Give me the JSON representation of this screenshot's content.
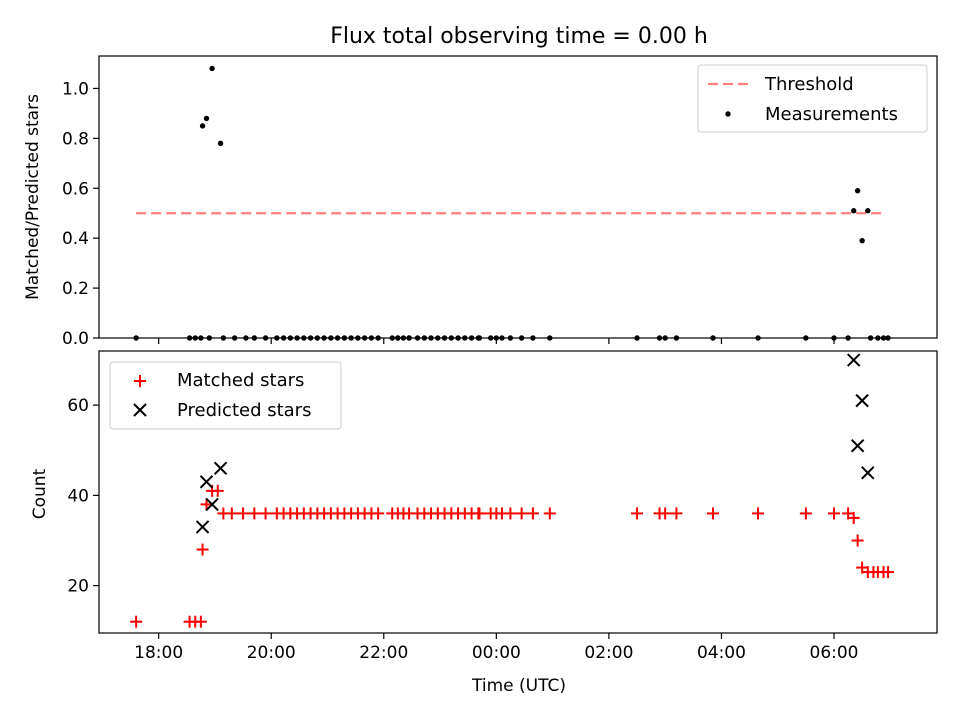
{
  "title": "Flux total observing time = 0.00 h",
  "chart_data": [
    {
      "type": "scatter",
      "panel": "top",
      "title": "Flux total observing time = 0.00 h",
      "xlabel": "",
      "ylabel": "Matched/Predicted stars",
      "x_unit": "hours since 00:00 UTC (negative = previous day)",
      "xlim": [
        -7.06,
        7.83
      ],
      "ylim": [
        0,
        1.13
      ],
      "yticks": [
        "0.0",
        "0.2",
        "0.4",
        "0.6",
        "0.8",
        "1.0"
      ],
      "ytick_values": [
        0,
        0.2,
        0.4,
        0.6,
        0.8,
        1.0
      ],
      "threshold": {
        "name": "Threshold",
        "y": 0.5,
        "x_range": [
          -6.4,
          6.85
        ],
        "color": "#ff7f7f"
      },
      "legend": {
        "placement": "top-right",
        "entries": [
          "Threshold",
          "Measurements"
        ]
      },
      "series": [
        {
          "name": "Measurements",
          "color": "#000000",
          "points": [
            [
              -6.4,
              0.0
            ],
            [
              -5.45,
              0.0
            ],
            [
              -5.35,
              0.0
            ],
            [
              -5.25,
              0.0
            ],
            [
              -5.22,
              0.85
            ],
            [
              -5.15,
              0.88
            ],
            [
              -5.05,
              1.08
            ],
            [
              -4.9,
              0.78
            ],
            [
              -5.1,
              0.0
            ],
            [
              -4.85,
              0.0
            ],
            [
              -4.65,
              0.0
            ],
            [
              -4.45,
              0.0
            ],
            [
              -4.3,
              0.0
            ],
            [
              -4.1,
              0.0
            ],
            [
              -3.9,
              0.0
            ],
            [
              -3.78,
              0.0
            ],
            [
              -3.66,
              0.0
            ],
            [
              -3.54,
              0.0
            ],
            [
              -3.42,
              0.0
            ],
            [
              -3.3,
              0.0
            ],
            [
              -3.18,
              0.0
            ],
            [
              -3.06,
              0.0
            ],
            [
              -2.94,
              0.0
            ],
            [
              -2.82,
              0.0
            ],
            [
              -2.7,
              0.0
            ],
            [
              -2.58,
              0.0
            ],
            [
              -2.46,
              0.0
            ],
            [
              -2.34,
              0.0
            ],
            [
              -2.22,
              0.0
            ],
            [
              -2.1,
              0.0
            ],
            [
              -1.85,
              0.0
            ],
            [
              -1.75,
              0.0
            ],
            [
              -1.65,
              0.0
            ],
            [
              -1.55,
              0.0
            ],
            [
              -1.75,
              0.0
            ],
            [
              -1.55,
              0.0
            ],
            [
              -1.4,
              0.0
            ],
            [
              -1.28,
              0.0
            ],
            [
              -1.16,
              0.0
            ],
            [
              -1.04,
              0.0
            ],
            [
              -0.92,
              0.0
            ],
            [
              -0.8,
              0.0
            ],
            [
              -0.68,
              0.0
            ],
            [
              -0.56,
              0.0
            ],
            [
              -0.44,
              0.0
            ],
            [
              -0.32,
              0.0
            ],
            [
              -0.3,
              0.0
            ],
            [
              -0.1,
              0.0
            ],
            [
              0.0,
              0.0
            ],
            [
              0.1,
              0.0
            ],
            [
              0.25,
              0.0
            ],
            [
              0.45,
              0.0
            ],
            [
              0.65,
              0.0
            ],
            [
              0.95,
              0.0
            ],
            [
              2.5,
              0.0
            ],
            [
              2.9,
              0.0
            ],
            [
              3.0,
              0.0
            ],
            [
              3.2,
              0.0
            ],
            [
              3.85,
              0.0
            ],
            [
              4.65,
              0.0
            ],
            [
              5.5,
              0.0
            ],
            [
              6.0,
              0.0
            ],
            [
              6.25,
              0.0
            ],
            [
              6.35,
              0.51
            ],
            [
              6.42,
              0.59
            ],
            [
              6.5,
              0.39
            ],
            [
              6.6,
              0.51
            ],
            [
              6.65,
              0.0
            ],
            [
              6.78,
              0.0
            ],
            [
              6.88,
              0.0
            ],
            [
              6.96,
              0.0
            ]
          ]
        }
      ]
    },
    {
      "type": "scatter",
      "panel": "bottom",
      "xlabel": "Time (UTC)",
      "ylabel": "Count",
      "xlim": [
        -7.06,
        7.83
      ],
      "ylim": [
        9.5,
        72
      ],
      "xticks": [
        "18:00",
        "20:00",
        "22:00",
        "00:00",
        "02:00",
        "04:00",
        "06:00"
      ],
      "xtick_values": [
        -6,
        -4,
        -2,
        0,
        2,
        4,
        6
      ],
      "yticks": [
        "20",
        "40",
        "60"
      ],
      "ytick_values": [
        20,
        40,
        60
      ],
      "legend": {
        "placement": "top-left",
        "entries": [
          "Matched stars",
          "Predicted stars"
        ]
      },
      "series": [
        {
          "name": "Matched stars",
          "marker": "plus",
          "color": "#ff0000",
          "points": [
            [
              -6.4,
              12
            ],
            [
              -5.45,
              12
            ],
            [
              -5.35,
              12
            ],
            [
              -5.25,
              12
            ],
            [
              -5.22,
              28
            ],
            [
              -5.15,
              38
            ],
            [
              -5.05,
              41
            ],
            [
              -4.95,
              41
            ],
            [
              -4.85,
              36
            ],
            [
              -4.7,
              36
            ],
            [
              -4.5,
              36
            ],
            [
              -4.3,
              36
            ],
            [
              -4.1,
              36
            ],
            [
              -3.9,
              36
            ],
            [
              -3.78,
              36
            ],
            [
              -3.66,
              36
            ],
            [
              -3.54,
              36
            ],
            [
              -3.42,
              36
            ],
            [
              -3.3,
              36
            ],
            [
              -3.18,
              36
            ],
            [
              -3.06,
              36
            ],
            [
              -2.94,
              36
            ],
            [
              -2.82,
              36
            ],
            [
              -2.7,
              36
            ],
            [
              -2.58,
              36
            ],
            [
              -2.46,
              36
            ],
            [
              -2.34,
              36
            ],
            [
              -2.22,
              36
            ],
            [
              -2.1,
              36
            ],
            [
              -1.85,
              36
            ],
            [
              -1.75,
              36
            ],
            [
              -1.65,
              36
            ],
            [
              -1.55,
              36
            ],
            [
              -1.4,
              36
            ],
            [
              -1.28,
              36
            ],
            [
              -1.16,
              36
            ],
            [
              -1.04,
              36
            ],
            [
              -0.92,
              36
            ],
            [
              -0.8,
              36
            ],
            [
              -0.68,
              36
            ],
            [
              -0.56,
              36
            ],
            [
              -0.44,
              36
            ],
            [
              -0.32,
              36
            ],
            [
              -0.3,
              36
            ],
            [
              -0.1,
              36
            ],
            [
              0.0,
              36
            ],
            [
              0.1,
              36
            ],
            [
              0.25,
              36
            ],
            [
              0.45,
              36
            ],
            [
              0.65,
              36
            ],
            [
              0.95,
              36
            ],
            [
              2.5,
              36
            ],
            [
              2.9,
              36
            ],
            [
              3.0,
              36
            ],
            [
              3.2,
              36
            ],
            [
              3.85,
              36
            ],
            [
              4.65,
              36
            ],
            [
              5.5,
              36
            ],
            [
              6.0,
              36
            ],
            [
              6.25,
              36
            ],
            [
              6.35,
              35
            ],
            [
              6.42,
              30
            ],
            [
              6.5,
              24
            ],
            [
              6.6,
              23
            ],
            [
              6.7,
              23
            ],
            [
              6.78,
              23
            ],
            [
              6.88,
              23
            ],
            [
              6.96,
              23
            ]
          ]
        },
        {
          "name": "Predicted stars",
          "marker": "x",
          "color": "#000000",
          "points": [
            [
              -5.22,
              33
            ],
            [
              -5.15,
              43
            ],
            [
              -5.05,
              38
            ],
            [
              -4.9,
              46
            ],
            [
              6.35,
              70
            ],
            [
              6.42,
              51
            ],
            [
              6.5,
              61
            ],
            [
              6.6,
              45
            ]
          ]
        }
      ]
    }
  ]
}
